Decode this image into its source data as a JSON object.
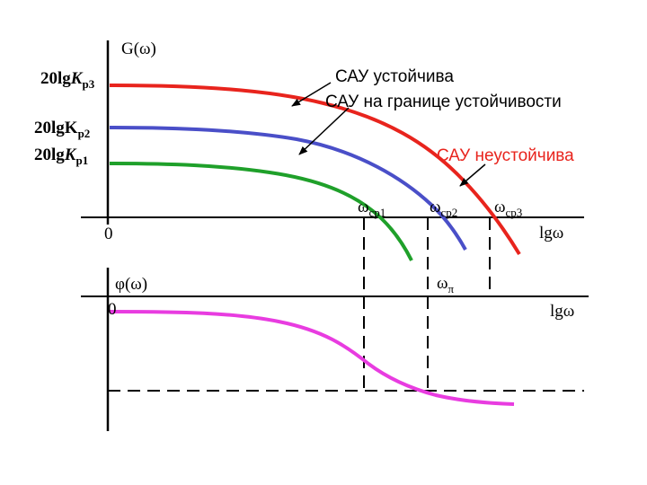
{
  "colors": {
    "curve_red": "#e8241d",
    "curve_blue": "#4a4fc8",
    "curve_green": "#1fa02a",
    "curve_magenta": "#e83ce0",
    "axis": "#000000",
    "annotation_red": "#e8241d"
  },
  "upper_plot": {
    "y_axis_label": "G(ω)",
    "origin_label": "0",
    "x_axis_label": "lgω",
    "levels": {
      "kp3": {
        "main": "20lg",
        "italic": "K",
        "sub": "р3"
      },
      "kp2": {
        "main": "20lgK",
        "italic": "",
        "sub": "р2"
      },
      "kp1": {
        "main": "20lg",
        "italic": "K",
        "sub": "р1"
      }
    },
    "crossover_labels": {
      "wcp1": {
        "main": "ω",
        "sub": "ср1"
      },
      "wcp2": {
        "main": "ω",
        "sub": "ср2"
      },
      "wcp3": {
        "main": "ω",
        "sub": "ср3"
      }
    }
  },
  "lower_plot": {
    "y_axis_label": "φ(ω)",
    "origin_label": "0",
    "x_axis_label": "lgω",
    "w_pi_label": {
      "main": "ω",
      "sub": "π"
    }
  },
  "annotations": {
    "stable": "САУ устойчива",
    "boundary": "САУ на границе устойчивости",
    "unstable": "САУ неустойчива"
  }
}
